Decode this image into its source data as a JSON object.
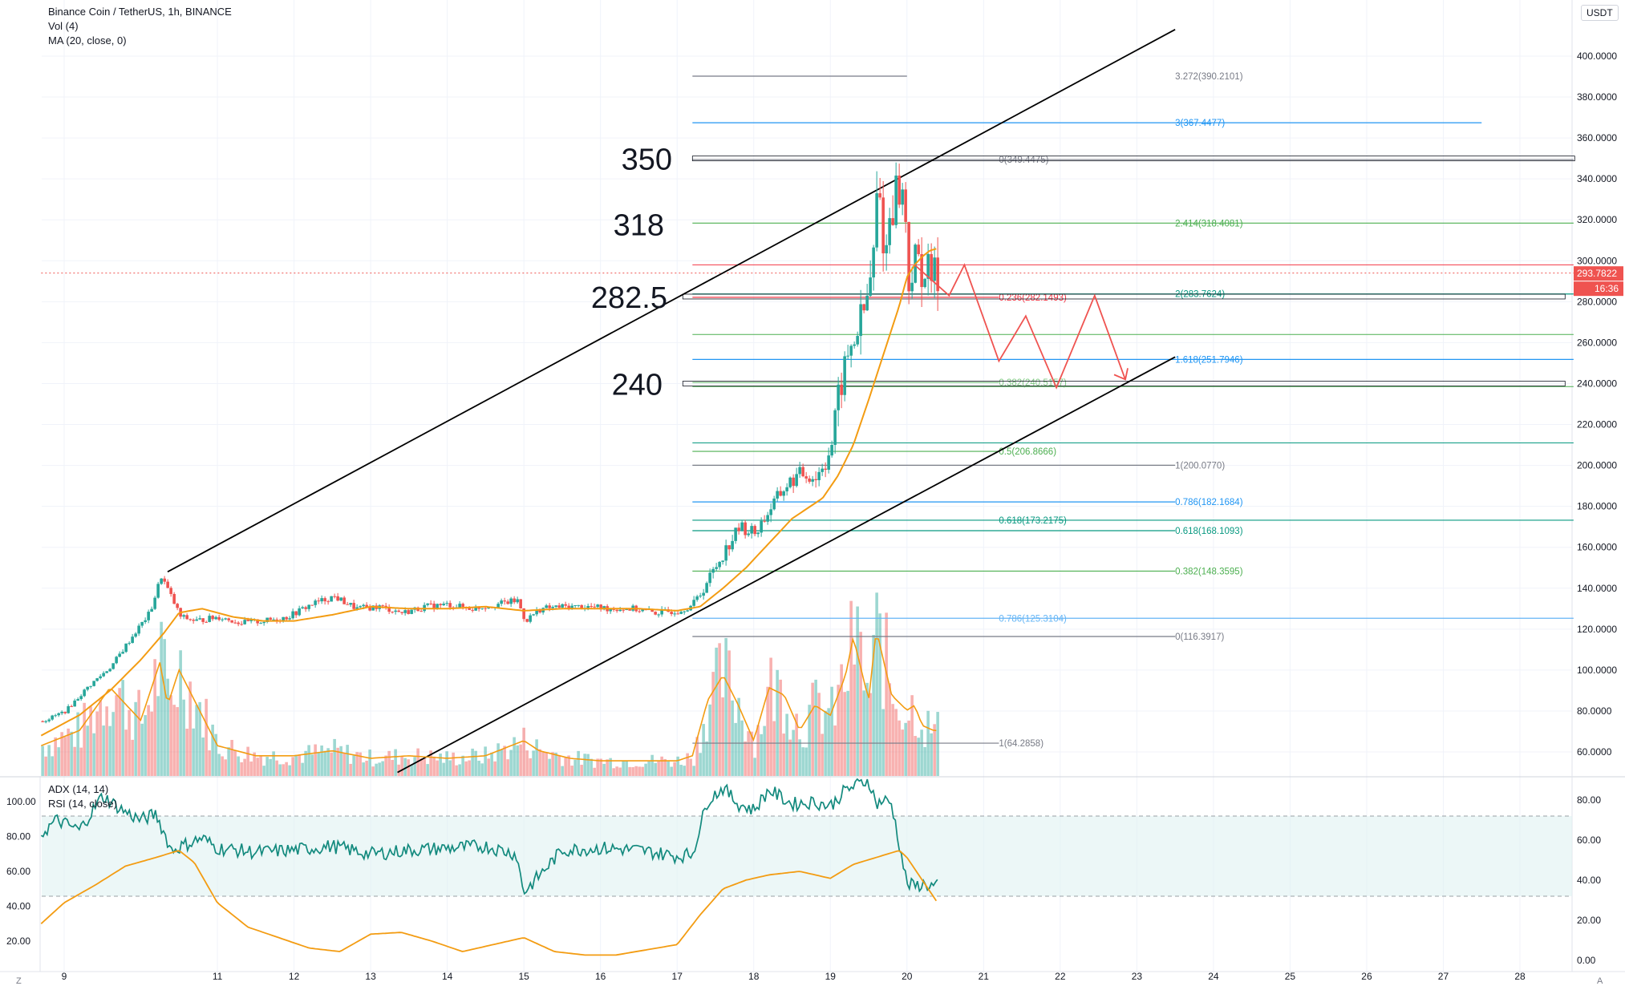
{
  "legend": {
    "symbol": "Binance Coin / TetherUS, 1h, BINANCE",
    "vol": "Vol (4)",
    "ma": "MA (20, close, 0)",
    "osc1": "ADX (14, 14)",
    "osc2": "RSI (14, close)"
  },
  "currency_button": "USDT",
  "z_button": "Z",
  "a_button": "A",
  "colors": {
    "up": "#26a69a",
    "down": "#ef5350",
    "ma": "#f39c12",
    "rsi": "#138a7e",
    "adx": "#f39c12",
    "channel": "#000000",
    "projection": "#ef5350"
  },
  "chart_data": {
    "type": "candlestick",
    "title": "Binance Coin / TetherUS, 1h, BINANCE",
    "x_ticks": [
      "9",
      "11",
      "12",
      "13",
      "14",
      "15",
      "16",
      "17",
      "18",
      "19",
      "20",
      "21",
      "22",
      "23",
      "24",
      "25",
      "26",
      "27",
      "28"
    ],
    "x_tick_days": [
      9,
      11,
      12,
      13,
      14,
      15,
      16,
      17,
      18,
      19,
      20,
      21,
      22,
      23,
      24,
      25,
      26,
      27,
      28
    ],
    "x_range_days": [
      8.7,
      28.7
    ],
    "price_ticks": [
      "400.0000",
      "380.0000",
      "360.0000",
      "340.0000",
      "320.0000",
      "300.0000",
      "280.0000",
      "260.0000",
      "240.0000",
      "220.0000",
      "200.0000",
      "180.0000",
      "160.0000",
      "140.0000",
      "120.0000",
      "100.0000",
      "80.0000",
      "60.0000"
    ],
    "price_tick_values": [
      400,
      380,
      360,
      340,
      320,
      300,
      280,
      260,
      240,
      220,
      200,
      180,
      160,
      140,
      120,
      100,
      80,
      60
    ],
    "price_range": [
      50,
      418
    ],
    "current_price": "293.7822",
    "countdown": "16:36",
    "price_series": {
      "days": [
        8.7,
        9.0,
        9.3,
        9.6,
        9.9,
        10.1,
        10.25,
        10.35,
        10.5,
        10.7,
        11.0,
        11.3,
        11.6,
        11.9,
        12.2,
        12.5,
        12.8,
        13.1,
        13.4,
        13.7,
        14.0,
        14.3,
        14.6,
        14.9,
        15.0,
        15.2,
        15.5,
        15.8,
        16.1,
        16.4,
        16.7,
        17.0,
        17.2,
        17.4,
        17.6,
        17.8,
        18.0,
        18.2,
        18.4,
        18.6,
        18.8,
        19.0,
        19.1,
        19.2,
        19.35,
        19.45,
        19.55,
        19.6,
        19.7,
        19.75,
        19.85,
        19.95,
        20.0,
        20.1,
        20.2,
        20.35
      ],
      "close": [
        75,
        80,
        92,
        102,
        118,
        128,
        146,
        138,
        126,
        124,
        126,
        123,
        124,
        126,
        132,
        136,
        130,
        131,
        128,
        131,
        132,
        130,
        132,
        134,
        124,
        130,
        131,
        131,
        130,
        130,
        128,
        129,
        132,
        145,
        158,
        170,
        167,
        179,
        190,
        196,
        194,
        210,
        236,
        252,
        268,
        278,
        303,
        340,
        300,
        322,
        336,
        330,
        290,
        300,
        295,
        292
      ]
    },
    "ma_series": {
      "days": [
        8.7,
        9.2,
        9.6,
        10.0,
        10.3,
        10.5,
        10.8,
        11.2,
        11.6,
        12.0,
        12.5,
        13.0,
        13.5,
        14.0,
        14.5,
        15.0,
        15.5,
        16.0,
        16.5,
        17.0,
        17.3,
        17.6,
        17.9,
        18.2,
        18.5,
        18.9,
        19.1,
        19.3,
        19.5,
        19.7,
        19.9,
        20.0,
        20.1,
        20.2,
        20.3,
        20.4
      ],
      "values": [
        68,
        78,
        90,
        105,
        118,
        128,
        130,
        126,
        124,
        124,
        127,
        131,
        130,
        130,
        131,
        129,
        130,
        130,
        130,
        129,
        131,
        140,
        150,
        162,
        174,
        184,
        195,
        210,
        232,
        255,
        278,
        292,
        298,
        302,
        305,
        306
      ]
    },
    "volume_series": {
      "days": [
        8.7,
        9.2,
        9.6,
        10.0,
        10.25,
        10.35,
        10.5,
        10.7,
        11.0,
        11.5,
        12.0,
        12.5,
        13.0,
        13.5,
        14.0,
        14.5,
        15.0,
        15.2,
        15.6,
        16.0,
        16.5,
        17.0,
        17.2,
        17.4,
        17.6,
        17.8,
        18.0,
        18.2,
        18.4,
        18.6,
        18.8,
        19.0,
        19.2,
        19.3,
        19.5,
        19.6,
        19.8,
        20.0,
        20.1,
        20.2,
        20.35
      ],
      "values": [
        12,
        18,
        35,
        22,
        45,
        28,
        42,
        30,
        12,
        8,
        8,
        10,
        7,
        8,
        7,
        8,
        14,
        10,
        7,
        6,
        6,
        6,
        8,
        30,
        40,
        28,
        14,
        35,
        32,
        18,
        28,
        24,
        40,
        55,
        30,
        58,
        32,
        26,
        28,
        20,
        18
      ]
    },
    "rsi_series": {
      "days": [
        8.7,
        8.9,
        9.2,
        9.5,
        9.8,
        10.0,
        10.2,
        10.4,
        10.6,
        10.8,
        11.0,
        11.5,
        12.0,
        12.5,
        13.0,
        13.5,
        14.0,
        14.5,
        14.9,
        15.0,
        15.1,
        15.5,
        16.0,
        16.5,
        17.0,
        17.2,
        17.4,
        17.6,
        17.8,
        18.0,
        18.2,
        18.5,
        18.8,
        19.0,
        19.2,
        19.5,
        19.6,
        19.7,
        19.8,
        20.0,
        20.1,
        20.2,
        20.35
      ],
      "values": [
        63,
        70,
        65,
        82,
        74,
        70,
        73,
        55,
        58,
        61,
        56,
        54,
        55,
        57,
        53,
        55,
        56,
        57,
        53,
        34,
        38,
        55,
        56,
        55,
        52,
        53,
        80,
        86,
        78,
        75,
        85,
        78,
        79,
        77,
        85,
        90,
        78,
        80,
        78,
        38,
        37,
        38,
        37
      ]
    },
    "adx_series": {
      "days": [
        8.7,
        9.0,
        9.4,
        9.8,
        10.2,
        10.5,
        10.7,
        11.0,
        11.4,
        11.8,
        12.2,
        12.6,
        13.0,
        13.4,
        13.8,
        14.2,
        14.6,
        15.0,
        15.4,
        15.8,
        16.2,
        16.6,
        17.0,
        17.3,
        17.6,
        17.9,
        18.2,
        18.6,
        19.0,
        19.3,
        19.6,
        19.9,
        20.0,
        20.2,
        20.4
      ],
      "values": [
        30,
        42,
        52,
        63,
        68,
        72,
        65,
        42,
        28,
        22,
        16,
        14,
        24,
        25,
        20,
        14,
        18,
        22,
        14,
        12,
        12,
        15,
        18,
        35,
        50,
        55,
        58,
        60,
        56,
        64,
        68,
        72,
        68,
        55,
        42
      ]
    },
    "right_scale_lower": [
      "80.00",
      "60.00",
      "40.00",
      "20.00",
      "0.00"
    ],
    "right_scale_lower_values": [
      80,
      60,
      40,
      20,
      0
    ],
    "left_scale_lower": [
      "100.00",
      "80.00",
      "60.00",
      "40.00",
      "20.00"
    ],
    "left_scale_lower_values": [
      100,
      80,
      60,
      40,
      20
    ],
    "rsi_band": [
      32,
      72
    ],
    "annotations": [
      {
        "text": "350",
        "price": 350
      },
      {
        "text": "318",
        "price": 318
      },
      {
        "text": "282.5",
        "price": 282.5
      },
      {
        "text": "240",
        "price": 240
      }
    ],
    "fib_levels": [
      {
        "label": "3.272(390.2101)",
        "price": 390.2101,
        "color": "#787b86",
        "from": 17.2,
        "to": 20.0,
        "label_day": 23.5
      },
      {
        "label": "3(367.4477)",
        "price": 367.4477,
        "color": "#2196f3",
        "from": 17.2,
        "to": 27.5,
        "label_day": 23.5
      },
      {
        "label": "0(349.4475)",
        "price": 349.4475,
        "color": "#787b86",
        "from": 17.2,
        "to": 28.7,
        "label_day": 21.2
      },
      {
        "label": "2.414(318.4081)",
        "price": 318.4081,
        "color": "#4caf50",
        "from": 17.2,
        "to": 28.7,
        "label_day": 23.5
      },
      {
        "label": "0.236(282.1493)",
        "price": 282.1493,
        "color": "#f23645",
        "from": 17.2,
        "to": 21.2,
        "label_day": 21.2
      },
      {
        "label": "2(283.7624)",
        "price": 283.7624,
        "color": "#089981",
        "from": 17.2,
        "to": 28.7,
        "label_day": 23.5
      },
      {
        "label": "1.618(251.7946)",
        "price": 251.7946,
        "color": "#2196f3",
        "from": 17.2,
        "to": 28.7,
        "label_day": 23.5
      },
      {
        "label": "0.382(240.5157)",
        "price": 240.5157,
        "color": "#81c784",
        "from": 17.2,
        "to": 21.2,
        "label_day": 21.2
      },
      {
        "label": "0.5(206.8666)",
        "price": 206.8666,
        "color": "#4caf50",
        "from": 17.2,
        "to": 21.2,
        "label_day": 21.2
      },
      {
        "label": "1(200.0770)",
        "price": 200.077,
        "color": "#787b86",
        "from": 17.2,
        "to": 23.5,
        "label_day": 23.5
      },
      {
        "label": "0.786(182.1684)",
        "price": 182.1684,
        "color": "#2196f3",
        "from": 17.2,
        "to": 23.5,
        "label_day": 23.5
      },
      {
        "label": "0.618(173.2175)",
        "price": 173.2175,
        "color": "#089981",
        "from": 17.2,
        "to": 28.7,
        "label_day": 21.2
      },
      {
        "label": "0.618(168.1093)",
        "price": 168.1093,
        "color": "#089981",
        "from": 17.2,
        "to": 23.5,
        "label_day": 23.5
      },
      {
        "label": "0.382(148.3595)",
        "price": 148.3595,
        "color": "#4caf50",
        "from": 17.2,
        "to": 23.5,
        "label_day": 23.5
      },
      {
        "label": "0.786(125.3104)",
        "price": 125.3104,
        "color": "#64b5f6",
        "from": 17.2,
        "to": 28.7,
        "label_day": 21.2
      },
      {
        "label": "0(116.3917)",
        "price": 116.3917,
        "color": "#787b86",
        "from": 17.2,
        "to": 23.5,
        "label_day": 23.5
      },
      {
        "label": "1(64.2858)",
        "price": 64.2858,
        "color": "#787b86",
        "from": 17.2,
        "to": 21.2,
        "label_day": 21.2
      }
    ],
    "plain_levels": [
      {
        "price": 298,
        "color": "#f23645",
        "from": 17.2,
        "to": 28.7
      },
      {
        "price": 264,
        "color": "#4caf50",
        "from": 17.2,
        "to": 28.7
      },
      {
        "price": 211,
        "color": "#089981",
        "from": 17.2,
        "to": 28.7
      },
      {
        "price": 238.5,
        "color": "#4caf50",
        "from": 17.2,
        "to": 28.7
      },
      {
        "price": 294,
        "color": "#ef5350",
        "from": 8.7,
        "to": 28.7
      }
    ],
    "channel_lines": [
      {
        "from": [
          10.35,
          148
        ],
        "to": [
          23.5,
          413
        ]
      },
      {
        "from": [
          13.35,
          50
        ],
        "to": [
          23.5,
          253
        ]
      }
    ],
    "projection_path": {
      "days": [
        20.1,
        20.55,
        20.75,
        21.2,
        21.55,
        21.95,
        22.45,
        22.85
      ],
      "prices": [
        298,
        283,
        298,
        251,
        273,
        238,
        283,
        242
      ]
    }
  }
}
